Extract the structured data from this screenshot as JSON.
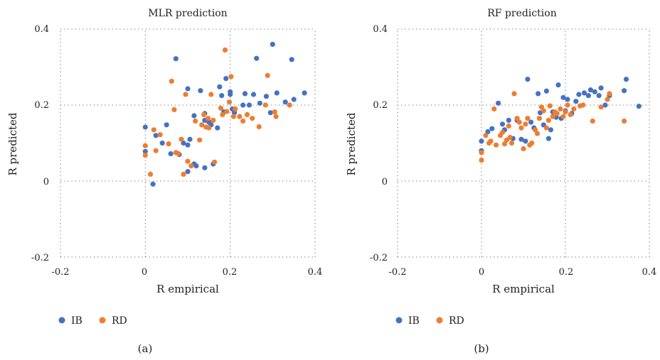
{
  "chart_data": [
    {
      "type": "scatter",
      "title": "MLR prediction",
      "panel_label": "(a)",
      "xlabel": "R empirical",
      "ylabel": "R predicted",
      "xlim": [
        -0.2,
        0.4
      ],
      "ylim": [
        -0.2,
        0.4
      ],
      "xticks": [
        "-0.2",
        "0",
        "0.2",
        "0.4"
      ],
      "yticks": [
        "-0.2",
        "0",
        "0.2",
        "0.4"
      ],
      "grid": "dotted",
      "legend_position": "bottom-left",
      "series": [
        {
          "name": "IB",
          "color": "#4472C4",
          "points": [
            [
              0.0,
              0.142
            ],
            [
              0.0,
              0.078
            ],
            [
              0.018,
              -0.008
            ],
            [
              0.025,
              0.12
            ],
            [
              0.04,
              0.1
            ],
            [
              0.05,
              0.148
            ],
            [
              0.06,
              0.072
            ],
            [
              0.072,
              0.322
            ],
            [
              0.08,
              0.07
            ],
            [
              0.09,
              0.1
            ],
            [
              0.1,
              0.243
            ],
            [
              0.1,
              0.025
            ],
            [
              0.1,
              0.095
            ],
            [
              0.105,
              0.11
            ],
            [
              0.115,
              0.172
            ],
            [
              0.115,
              0.045
            ],
            [
              0.12,
              0.04
            ],
            [
              0.13,
              0.238
            ],
            [
              0.14,
              0.178
            ],
            [
              0.14,
              0.16
            ],
            [
              0.14,
              0.035
            ],
            [
              0.15,
              0.155
            ],
            [
              0.155,
              0.148
            ],
            [
              0.16,
              0.045
            ],
            [
              0.17,
              0.14
            ],
            [
              0.175,
              0.248
            ],
            [
              0.18,
              0.225
            ],
            [
              0.185,
              0.182
            ],
            [
              0.19,
              0.27
            ],
            [
              0.2,
              0.235
            ],
            [
              0.2,
              0.228
            ],
            [
              0.205,
              0.19
            ],
            [
              0.21,
              0.18
            ],
            [
              0.23,
              0.2
            ],
            [
              0.235,
              0.23
            ],
            [
              0.245,
              0.2
            ],
            [
              0.255,
              0.228
            ],
            [
              0.262,
              0.323
            ],
            [
              0.27,
              0.205
            ],
            [
              0.285,
              0.223
            ],
            [
              0.295,
              0.18
            ],
            [
              0.3,
              0.36
            ],
            [
              0.31,
              0.232
            ],
            [
              0.33,
              0.208
            ],
            [
              0.345,
              0.32
            ],
            [
              0.35,
              0.215
            ],
            [
              0.375,
              0.232
            ]
          ]
        },
        {
          "name": "RD",
          "color": "#ED7D31",
          "points": [
            [
              0.0,
              0.093
            ],
            [
              0.0,
              0.068
            ],
            [
              0.012,
              0.018
            ],
            [
              0.02,
              0.135
            ],
            [
              0.025,
              0.08
            ],
            [
              0.035,
              0.122
            ],
            [
              0.055,
              0.098
            ],
            [
              0.062,
              0.263
            ],
            [
              0.068,
              0.188
            ],
            [
              0.072,
              0.075
            ],
            [
              0.078,
              0.072
            ],
            [
              0.085,
              0.11
            ],
            [
              0.09,
              0.018
            ],
            [
              0.095,
              0.228
            ],
            [
              0.1,
              0.052
            ],
            [
              0.108,
              0.04
            ],
            [
              0.118,
              0.158
            ],
            [
              0.128,
              0.108
            ],
            [
              0.133,
              0.148
            ],
            [
              0.138,
              0.175
            ],
            [
              0.143,
              0.142
            ],
            [
              0.148,
              0.165
            ],
            [
              0.15,
              0.14
            ],
            [
              0.155,
              0.228
            ],
            [
              0.16,
              0.16
            ],
            [
              0.163,
              0.05
            ],
            [
              0.178,
              0.192
            ],
            [
              0.182,
              0.175
            ],
            [
              0.188,
              0.345
            ],
            [
              0.192,
              0.183
            ],
            [
              0.198,
              0.208
            ],
            [
              0.202,
              0.275
            ],
            [
              0.208,
              0.17
            ],
            [
              0.212,
              0.19
            ],
            [
              0.222,
              0.17
            ],
            [
              0.23,
              0.158
            ],
            [
              0.24,
              0.175
            ],
            [
              0.252,
              0.165
            ],
            [
              0.268,
              0.143
            ],
            [
              0.283,
              0.2
            ],
            [
              0.288,
              0.278
            ],
            [
              0.305,
              0.182
            ],
            [
              0.308,
              0.17
            ],
            [
              0.34,
              0.2
            ]
          ]
        }
      ]
    },
    {
      "type": "scatter",
      "title": "RF prediction",
      "panel_label": "(b)",
      "xlabel": "R empirical",
      "ylabel": "R predicted",
      "xlim": [
        -0.2,
        0.4
      ],
      "ylim": [
        -0.2,
        0.4
      ],
      "xticks": [
        "-0.2",
        "0",
        "0.2",
        "0.4"
      ],
      "yticks": [
        "-0.2",
        "0",
        "0.2",
        "0.4"
      ],
      "grid": "dotted",
      "legend_position": "bottom-left",
      "series": [
        {
          "name": "IB",
          "color": "#4472C4",
          "points": [
            [
              0.0,
              0.105
            ],
            [
              0.0,
              0.08
            ],
            [
              0.015,
              0.13
            ],
            [
              0.025,
              0.138
            ],
            [
              0.04,
              0.205
            ],
            [
              0.05,
              0.15
            ],
            [
              0.055,
              0.135
            ],
            [
              0.065,
              0.16
            ],
            [
              0.075,
              0.112
            ],
            [
              0.085,
              0.16
            ],
            [
              0.095,
              0.11
            ],
            [
              0.105,
              0.105
            ],
            [
              0.11,
              0.268
            ],
            [
              0.118,
              0.155
            ],
            [
              0.125,
              0.14
            ],
            [
              0.135,
              0.23
            ],
            [
              0.14,
              0.18
            ],
            [
              0.148,
              0.148
            ],
            [
              0.155,
              0.237
            ],
            [
              0.16,
              0.112
            ],
            [
              0.165,
              0.135
            ],
            [
              0.17,
              0.182
            ],
            [
              0.178,
              0.168
            ],
            [
              0.183,
              0.253
            ],
            [
              0.19,
              0.165
            ],
            [
              0.195,
              0.22
            ],
            [
              0.2,
              0.185
            ],
            [
              0.205,
              0.215
            ],
            [
              0.215,
              0.178
            ],
            [
              0.225,
              0.21
            ],
            [
              0.232,
              0.228
            ],
            [
              0.245,
              0.232
            ],
            [
              0.255,
              0.225
            ],
            [
              0.26,
              0.24
            ],
            [
              0.27,
              0.235
            ],
            [
              0.28,
              0.225
            ],
            [
              0.285,
              0.245
            ],
            [
              0.295,
              0.2
            ],
            [
              0.305,
              0.225
            ],
            [
              0.34,
              0.238
            ],
            [
              0.345,
              0.268
            ],
            [
              0.375,
              0.197
            ]
          ]
        },
        {
          "name": "RD",
          "color": "#ED7D31",
          "points": [
            [
              0.0,
              0.055
            ],
            [
              0.0,
              0.075
            ],
            [
              0.01,
              0.12
            ],
            [
              0.018,
              0.1
            ],
            [
              0.022,
              0.105
            ],
            [
              0.03,
              0.19
            ],
            [
              0.035,
              0.095
            ],
            [
              0.045,
              0.12
            ],
            [
              0.05,
              0.128
            ],
            [
              0.055,
              0.098
            ],
            [
              0.06,
              0.108
            ],
            [
              0.065,
              0.145
            ],
            [
              0.068,
              0.115
            ],
            [
              0.072,
              0.1
            ],
            [
              0.078,
              0.23
            ],
            [
              0.085,
              0.165
            ],
            [
              0.09,
              0.155
            ],
            [
              0.095,
              0.14
            ],
            [
              0.1,
              0.085
            ],
            [
              0.105,
              0.15
            ],
            [
              0.11,
              0.165
            ],
            [
              0.115,
              0.095
            ],
            [
              0.12,
              0.1
            ],
            [
              0.128,
              0.135
            ],
            [
              0.133,
              0.125
            ],
            [
              0.138,
              0.165
            ],
            [
              0.143,
              0.195
            ],
            [
              0.148,
              0.185
            ],
            [
              0.155,
              0.14
            ],
            [
              0.16,
              0.16
            ],
            [
              0.163,
              0.198
            ],
            [
              0.17,
              0.17
            ],
            [
              0.175,
              0.182
            ],
            [
              0.18,
              0.178
            ],
            [
              0.188,
              0.19
            ],
            [
              0.195,
              0.17
            ],
            [
              0.2,
              0.182
            ],
            [
              0.205,
              0.2
            ],
            [
              0.212,
              0.175
            ],
            [
              0.22,
              0.19
            ],
            [
              0.235,
              0.198
            ],
            [
              0.242,
              0.2
            ],
            [
              0.265,
              0.158
            ],
            [
              0.285,
              0.195
            ],
            [
              0.3,
              0.215
            ],
            [
              0.305,
              0.23
            ],
            [
              0.34,
              0.158
            ]
          ]
        }
      ]
    }
  ]
}
